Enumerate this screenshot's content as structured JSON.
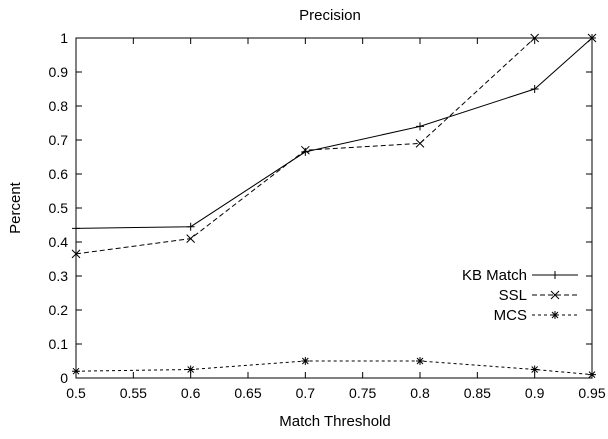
{
  "chart_data": {
    "type": "line",
    "title": "Precision",
    "xlabel": "Match Threshold",
    "ylabel": "Percent",
    "xlim": [
      0.5,
      0.95
    ],
    "ylim": [
      0,
      1
    ],
    "xticks": [
      0.5,
      0.55,
      0.6,
      0.65,
      0.7,
      0.75,
      0.8,
      0.85,
      0.9,
      0.95
    ],
    "xtick_labels": [
      "0.5",
      "0.55",
      "0.6",
      "0.65",
      "0.7",
      "0.75",
      "0.8",
      "0.85",
      "0.9",
      "0.95"
    ],
    "yticks": [
      0,
      0.1,
      0.2,
      0.3,
      0.4,
      0.5,
      0.6,
      0.7,
      0.8,
      0.9,
      1
    ],
    "ytick_labels": [
      "0",
      "0.1",
      "0.2",
      "0.3",
      "0.4",
      "0.5",
      "0.6",
      "0.7",
      "0.8",
      "0.9",
      "1"
    ],
    "grid": false,
    "legend_position": "right-middle",
    "series": [
      {
        "name": "KB Match",
        "marker": "plus",
        "line": "solid",
        "x": [
          0.5,
          0.6,
          0.7,
          0.8,
          0.9,
          0.95
        ],
        "y": [
          0.44,
          0.445,
          0.665,
          0.74,
          0.85,
          1.0
        ]
      },
      {
        "name": "SSL",
        "marker": "cross",
        "line": "dashed",
        "x": [
          0.5,
          0.6,
          0.7,
          0.8,
          0.9,
          0.95
        ],
        "y": [
          0.365,
          0.41,
          0.67,
          0.69,
          1.0,
          1.0
        ]
      },
      {
        "name": "MCS",
        "marker": "star",
        "line": "dotted",
        "x": [
          0.5,
          0.6,
          0.7,
          0.8,
          0.9,
          0.95
        ],
        "y": [
          0.02,
          0.025,
          0.05,
          0.05,
          0.025,
          0.01
        ]
      }
    ]
  }
}
